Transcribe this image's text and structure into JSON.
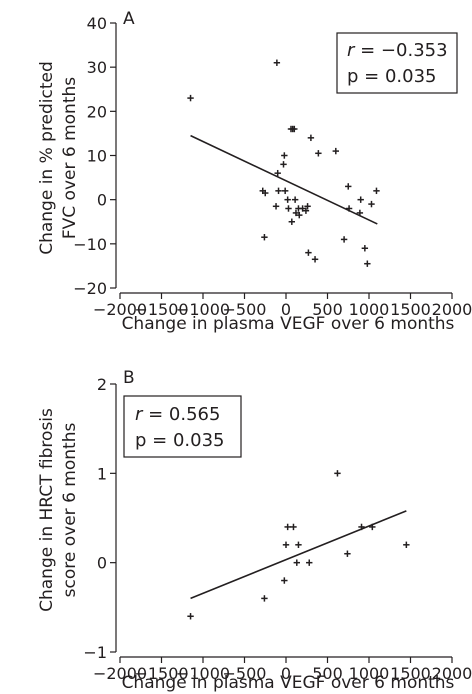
{
  "chart_data": [
    {
      "type": "scatter",
      "panel_label": "A",
      "xlabel": "Change in plasma VEGF over 6 months",
      "ylabel_lines": [
        "Change in % predicted",
        "FVC over 6 months"
      ],
      "xlim": [
        -2000,
        2000
      ],
      "ylim": [
        -20,
        40
      ],
      "xticks": [
        -2000,
        -1500,
        -1000,
        -500,
        0,
        500,
        1000,
        1500,
        2000
      ],
      "yticks": [
        -20,
        -10,
        0,
        10,
        20,
        30,
        40
      ],
      "xtick_labels": [
        "−2000",
        "−1500",
        "−1000",
        "−500",
        "0",
        "500",
        "1000",
        "1500",
        "2000"
      ],
      "ytick_labels": [
        "−20",
        "−10",
        "0",
        "10",
        "20",
        "30",
        "40"
      ],
      "stats": {
        "r_label": "r",
        "r_value": " = −0.353",
        "p_text": "p = 0.035"
      },
      "legend_position": "top-right",
      "grid": false,
      "fit_line": {
        "x": [
          -1150,
          1100
        ],
        "y": [
          14.5,
          -5.5
        ]
      },
      "points": [
        {
          "x": -1150,
          "y": 23
        },
        {
          "x": -280,
          "y": 2
        },
        {
          "x": -250,
          "y": 1.5
        },
        {
          "x": -260,
          "y": -8.5
        },
        {
          "x": -110,
          "y": 31
        },
        {
          "x": -100,
          "y": 6
        },
        {
          "x": -120,
          "y": -1.5
        },
        {
          "x": -90,
          "y": 2
        },
        {
          "x": -30,
          "y": 8
        },
        {
          "x": -20,
          "y": 10
        },
        {
          "x": -10,
          "y": 2
        },
        {
          "x": 20,
          "y": 0
        },
        {
          "x": 30,
          "y": -2
        },
        {
          "x": 60,
          "y": 16
        },
        {
          "x": 80,
          "y": 16
        },
        {
          "x": 100,
          "y": 16
        },
        {
          "x": 70,
          "y": -5
        },
        {
          "x": 110,
          "y": 0
        },
        {
          "x": 120,
          "y": -3
        },
        {
          "x": 150,
          "y": -2
        },
        {
          "x": 160,
          "y": -3.5
        },
        {
          "x": 200,
          "y": -2
        },
        {
          "x": 240,
          "y": -2.5
        },
        {
          "x": 260,
          "y": -1.5
        },
        {
          "x": 270,
          "y": -12
        },
        {
          "x": 300,
          "y": 14
        },
        {
          "x": 350,
          "y": -13.5
        },
        {
          "x": 390,
          "y": 10.5
        },
        {
          "x": 600,
          "y": 11
        },
        {
          "x": 700,
          "y": -9
        },
        {
          "x": 750,
          "y": 3
        },
        {
          "x": 760,
          "y": -2
        },
        {
          "x": 890,
          "y": -3
        },
        {
          "x": 900,
          "y": 0
        },
        {
          "x": 950,
          "y": -11
        },
        {
          "x": 980,
          "y": -14.5
        },
        {
          "x": 1030,
          "y": -1
        },
        {
          "x": 1090,
          "y": 2
        }
      ]
    },
    {
      "type": "scatter",
      "panel_label": "B",
      "xlabel": "Change in plasma VEGF over 6 months",
      "ylabel_lines": [
        "Change in HRCT fibrosis",
        "score over 6 months"
      ],
      "xlim": [
        -2000,
        2000
      ],
      "ylim": [
        -1,
        2
      ],
      "xticks": [
        -2000,
        -1500,
        -1000,
        -500,
        0,
        500,
        1000,
        1500,
        2000
      ],
      "yticks": [
        -1,
        0,
        1,
        2
      ],
      "xtick_labels": [
        "−2000",
        "−1500",
        "−1000",
        "−500",
        "0",
        "500",
        "1000",
        "1500",
        "2000"
      ],
      "ytick_labels": [
        "−1",
        "0",
        "1",
        "2"
      ],
      "stats": {
        "r_label": "r",
        "r_value": " = 0.565",
        "p_text": "p = 0.035"
      },
      "legend_position": "top-left",
      "grid": false,
      "fit_line": {
        "x": [
          -1150,
          1450
        ],
        "y": [
          -0.4,
          0.58
        ]
      },
      "points": [
        {
          "x": -1150,
          "y": -0.6
        },
        {
          "x": -260,
          "y": -0.4
        },
        {
          "x": -20,
          "y": -0.2
        },
        {
          "x": 0,
          "y": 0.2
        },
        {
          "x": 20,
          "y": 0.4
        },
        {
          "x": 90,
          "y": 0.4
        },
        {
          "x": 130,
          "y": 0.0
        },
        {
          "x": 150,
          "y": 0.2
        },
        {
          "x": 280,
          "y": 0.0
        },
        {
          "x": 620,
          "y": 1.0
        },
        {
          "x": 740,
          "y": 0.1
        },
        {
          "x": 910,
          "y": 0.4
        },
        {
          "x": 1040,
          "y": 0.4
        },
        {
          "x": 1450,
          "y": 0.2
        }
      ]
    }
  ]
}
